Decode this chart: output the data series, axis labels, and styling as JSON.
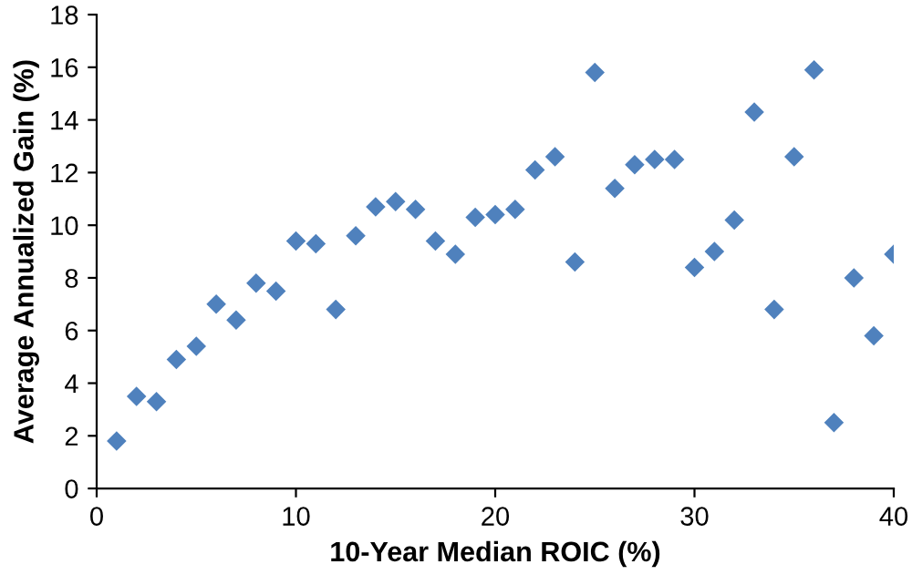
{
  "chart_data": {
    "type": "scatter",
    "xlabel": "10-Year Median ROIC (%)",
    "ylabel": "Average Annualized Gain (%)",
    "x": [
      1,
      2,
      3,
      4,
      5,
      6,
      7,
      8,
      9,
      10,
      11,
      12,
      13,
      14,
      15,
      16,
      17,
      18,
      19,
      20,
      21,
      22,
      23,
      24,
      25,
      26,
      27,
      28,
      29,
      30,
      31,
      32,
      33,
      34,
      35,
      36,
      37,
      38,
      39,
      40
    ],
    "series": [
      {
        "color": "#4f81bd",
        "values": [
          1.8,
          3.5,
          3.3,
          4.9,
          5.4,
          7.0,
          6.4,
          7.8,
          7.5,
          9.4,
          9.3,
          6.8,
          9.6,
          10.7,
          10.9,
          10.6,
          9.4,
          8.9,
          10.3,
          10.4,
          10.6,
          12.1,
          12.6,
          8.6,
          15.8,
          11.4,
          12.3,
          12.5,
          12.5,
          8.4,
          9.0,
          10.2,
          14.3,
          6.8,
          12.6,
          15.9,
          2.5,
          8.0,
          5.8,
          8.9
        ]
      }
    ],
    "xlim": [
      0,
      40
    ],
    "xticks": [
      0,
      10,
      20,
      30,
      40
    ],
    "ylim": [
      0,
      18
    ],
    "yticks": [
      0,
      2,
      4,
      6,
      8,
      10,
      12,
      14,
      16,
      18
    ],
    "marker": "diamond",
    "grid": false,
    "legend": false
  }
}
